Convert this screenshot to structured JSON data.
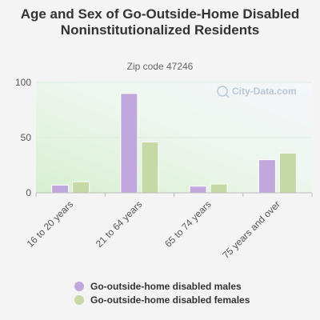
{
  "chart_data": {
    "type": "bar",
    "title": "Age and Sex of Go-Outside-Home Disabled Noninstitutionalized Residents",
    "subtitle": "Zip code 47246",
    "categories": [
      "16 to 20 years",
      "21 to 64 years",
      "65 to 74 years",
      "75 years and over"
    ],
    "series": [
      {
        "name": "Go-outside-home disabled males",
        "values": [
          7,
          90,
          6,
          30
        ],
        "color": "#c0a8dc"
      },
      {
        "name": "Go-outside-home disabled females",
        "values": [
          10,
          46,
          8,
          36
        ],
        "color": "#c5d9a5"
      }
    ],
    "ylim": [
      0,
      100
    ],
    "yticks": [
      0,
      50,
      100
    ],
    "grid": true,
    "legend_position": "bottom",
    "watermark": "City-Data.com"
  }
}
